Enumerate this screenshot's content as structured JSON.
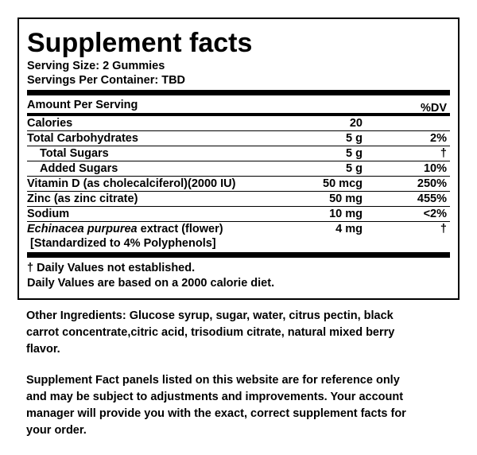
{
  "panel": {
    "title": "Supplement facts",
    "serving_size": "Serving Size: 2 Gummies",
    "servings_per_container": "Servings Per Container: TBD",
    "header": {
      "amount": "Amount Per Serving",
      "dv": "%DV"
    },
    "rows": [
      {
        "name": "Calories",
        "amount": "20"
      },
      {
        "name": "Total Carbohydrates",
        "amount": "5 g",
        "dv": "2%"
      },
      {
        "name": "Total Sugars",
        "amount": "5 g",
        "dv": "†"
      },
      {
        "name": "Added Sugars",
        "amount": "5 g",
        "dv": "10%"
      },
      {
        "name": "Vitamin D (as cholecalciferol)(2000 IU)",
        "amount": "50 mcg",
        "dv": "250%"
      },
      {
        "name": "Zinc (as zinc citrate)",
        "amount": "50 mg",
        "dv": "455%"
      },
      {
        "name": "Sodium",
        "amount": "10 mg",
        "dv": "<2%"
      },
      {
        "name_italic": "Echinacea purpurea",
        "name": " extract (flower)",
        "note": "[Standardized to 4% Polyphenols]",
        "amount": "4 mg",
        "dv": "†"
      }
    ],
    "footnotes": [
      "† Daily Values not established.",
      "Daily Values are based on a 2000 calorie diet."
    ]
  },
  "other_ingredients": [
    "Other Ingredients: Glucose syrup, sugar, water, citrus pectin, black",
    "carrot concentrate,citric acid, trisodium citrate, natural mixed berry",
    "flavor."
  ],
  "disclaimer": [
    "Supplement Fact panels listed on this website are for reference only",
    "and may be subject to adjustments and improvements. Your account",
    "manager will provide you with the exact, correct supplement facts for",
    "your order."
  ]
}
